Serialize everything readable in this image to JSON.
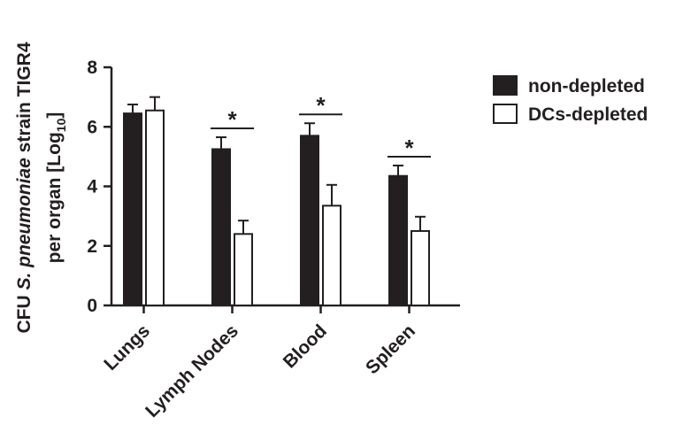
{
  "chart_data": {
    "type": "bar",
    "categories": [
      "Lungs",
      "Lymph Nodes",
      "Blood",
      "Spleen"
    ],
    "ylabel_line1_pre": "CFU ",
    "ylabel_line1_italic": "S. pneumoniae",
    "ylabel_line1_post": " strain TIGR4",
    "ylabel_line2_pre": "per organ [Log",
    "ylabel_line2_sub": "10",
    "ylabel_line2_post": "]",
    "ylim": [
      0,
      8
    ],
    "yticks": [
      "0",
      "2",
      "4",
      "6",
      "8"
    ],
    "legend_position": "top-right",
    "significance_marker": "*",
    "significant": [
      false,
      true,
      true,
      true
    ],
    "series": [
      {
        "name": "non-depleted",
        "color": "#231f20",
        "values": [
          6.45,
          5.25,
          5.7,
          4.35
        ],
        "errors": [
          0.3,
          0.4,
          0.42,
          0.35
        ]
      },
      {
        "name": "DCs-depleted",
        "color": "#ffffff",
        "values": [
          6.55,
          2.4,
          3.35,
          2.5
        ],
        "errors": [
          0.45,
          0.45,
          0.7,
          0.48
        ]
      }
    ]
  }
}
